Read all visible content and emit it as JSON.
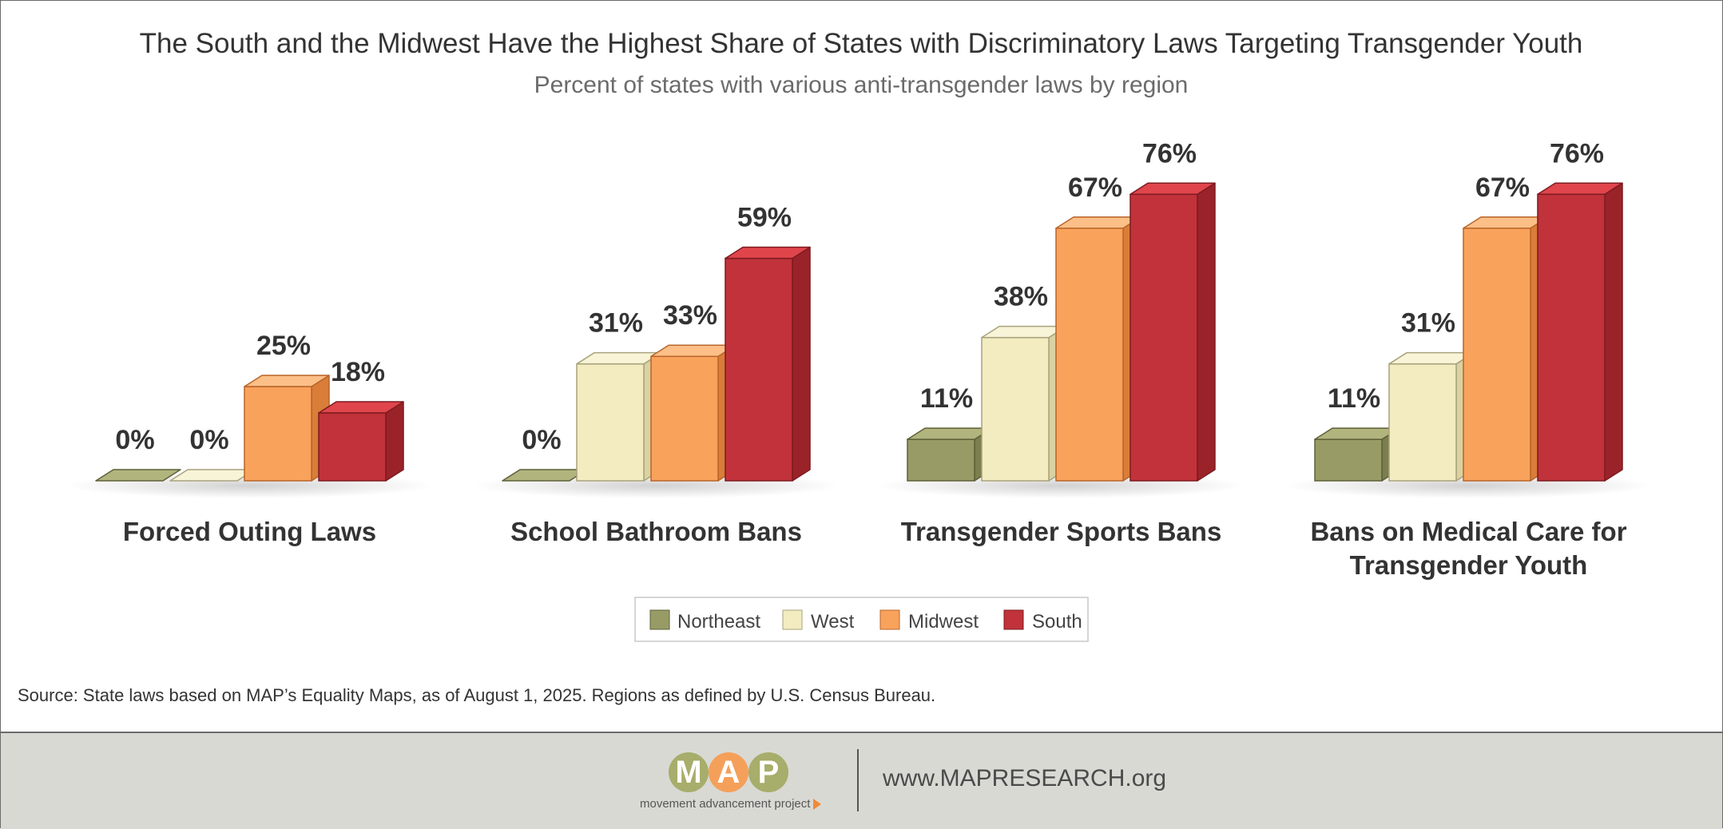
{
  "chart_data": {
    "type": "bar",
    "title": "The South and the Midwest Have the Highest Share of States with Discriminatory Laws Targeting Transgender Youth",
    "subtitle": "Percent of states with various anti-transgender laws by region",
    "categories": [
      "Forced Outing Laws",
      "School Bathroom Bans",
      "Transgender Sports Bans",
      "Bans on Medical Care for Transgender Youth"
    ],
    "series": [
      {
        "name": "Northeast",
        "values": [
          0,
          0,
          11,
          11
        ]
      },
      {
        "name": "West",
        "values": [
          0,
          31,
          38,
          31
        ]
      },
      {
        "name": "Midwest",
        "values": [
          25,
          33,
          67,
          67
        ]
      },
      {
        "name": "South",
        "values": [
          18,
          59,
          76,
          76
        ]
      }
    ],
    "value_labels": [
      [
        "0%",
        "0%",
        "11%",
        "11%"
      ],
      [
        "0%",
        "31%",
        "38%",
        "31%"
      ],
      [
        "25%",
        "33%",
        "67%",
        "67%"
      ],
      [
        "18%",
        "59%",
        "76%",
        "76%"
      ]
    ],
    "ylim": [
      0,
      100
    ],
    "grid": false,
    "legend_position": "bottom-center",
    "colors": {
      "Northeast": {
        "front": "#989b65",
        "side": "#7b7e4e",
        "top": "#b2b47e",
        "stroke": "#5e6038"
      },
      "West": {
        "front": "#f2ecc0",
        "side": "#d9d2a2",
        "top": "#f8f4d8",
        "stroke": "#a9a27c"
      },
      "Midwest": {
        "front": "#f9a25c",
        "side": "#d97d38",
        "top": "#fbbf87",
        "stroke": "#b8652a"
      },
      "South": {
        "front": "#c1323a",
        "side": "#9a2329",
        "top": "#e0454c",
        "stroke": "#7c1b20"
      }
    }
  },
  "source_note": "Source: State laws based on MAP’s Equality Maps, as of August 1, 2025. Regions as defined by U.S. Census Bureau.",
  "footer": {
    "logo_letters": [
      "M",
      "A",
      "P"
    ],
    "logo_tagline": "movement advancement project",
    "url": "www.MAPRESEARCH.org",
    "colors": {
      "M": "#a7ad6a",
      "A": "#f4a05a",
      "P": "#a7ad6a",
      "background": "#d9d9d4"
    }
  }
}
